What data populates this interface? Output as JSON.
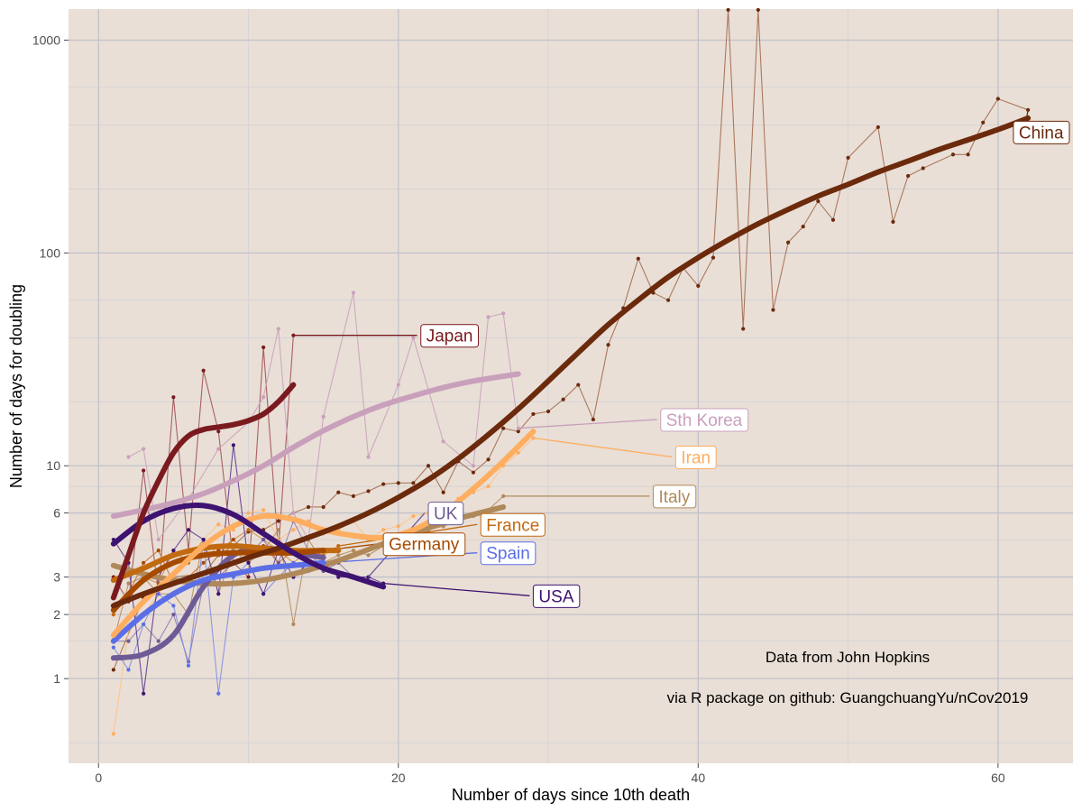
{
  "chart_data": {
    "type": "line",
    "xlabel": "Number of days since 10th death",
    "ylabel": "Number of days for doubling",
    "xlim": [
      -2,
      65
    ],
    "ylim": [
      0.4,
      1400
    ],
    "y_scale": "log",
    "x_ticks": [
      0,
      20,
      40,
      60
    ],
    "y_ticks": [
      1,
      2,
      3,
      6,
      10,
      100,
      1000
    ],
    "y_tick_labels": [
      "1",
      "2",
      "3",
      "6",
      "10",
      "100",
      "1000"
    ],
    "grid": true,
    "annotations": [
      "Data from John Hopkins",
      "via R package on github: GuangchuangYu/nCov2019"
    ],
    "series": [
      {
        "name": "China",
        "color": "#6b2a0c",
        "raw_color": "#a0664a",
        "raw_x": [
          1,
          3,
          5,
          7,
          8,
          9,
          10,
          11,
          12,
          13,
          14,
          15,
          16,
          17,
          18,
          19,
          20,
          21,
          22,
          23,
          24,
          25,
          26,
          27,
          28,
          29,
          30,
          31,
          32,
          33,
          34,
          35,
          36,
          37,
          38,
          39,
          40,
          41,
          42,
          43,
          44,
          45,
          46,
          47,
          48,
          49,
          50,
          52,
          53,
          54,
          55,
          57,
          58,
          59,
          60,
          62
        ],
        "raw_y": [
          1.1,
          2.4,
          3.0,
          3.1,
          3.8,
          4.2,
          4.9,
          5.0,
          5.5,
          6.0,
          6.4,
          6.4,
          7.5,
          7.2,
          7.6,
          8.2,
          8.3,
          8.3,
          10.0,
          7.5,
          10.5,
          9.3,
          10.7,
          15.0,
          14.5,
          17.5,
          18.0,
          20.5,
          24.0,
          16.5,
          37.0,
          55.0,
          94.0,
          65.0,
          60.0,
          85.0,
          70.0,
          95.0,
          1400,
          44.0,
          1400,
          54.0,
          112.0,
          133.0,
          175.0,
          143.0,
          280.0,
          390.0,
          140.0,
          230.0,
          250.0,
          290.0,
          290.0,
          410.0,
          530.0,
          470.0
        ],
        "smooth_x": [
          1,
          3,
          5,
          8,
          10,
          12,
          14,
          16,
          18,
          20,
          22,
          24,
          26,
          28,
          30,
          32,
          34,
          36,
          38,
          40,
          42,
          44,
          46,
          48,
          50,
          52,
          54,
          56,
          58,
          60,
          62
        ],
        "smooth_y": [
          2.2,
          2.5,
          2.8,
          3.3,
          3.7,
          4.1,
          4.6,
          5.2,
          6.0,
          7.1,
          8.6,
          10.8,
          14.0,
          18.5,
          25.0,
          34.0,
          46.0,
          60.0,
          77.0,
          95.0,
          115.0,
          137.0,
          160.0,
          185.0,
          210.0,
          240.0,
          270.0,
          305.0,
          340.0,
          380.0,
          430.0
        ],
        "label_x": 62,
        "label_y": 370
      },
      {
        "name": "Japan",
        "color": "#7a1a1f",
        "raw_color": "#9e4a4f",
        "raw_x": [
          1,
          2,
          3,
          4,
          5,
          6,
          7,
          8,
          9,
          10,
          11,
          12,
          13
        ],
        "raw_y": [
          3.0,
          2.3,
          9.5,
          2.5,
          21.0,
          4.0,
          28.0,
          14.5,
          3.5,
          3.0,
          36.0,
          4.0,
          41.0
        ],
        "smooth_x": [
          1,
          2,
          3,
          4,
          5,
          6,
          7,
          8,
          9,
          10,
          11,
          12,
          13
        ],
        "smooth_y": [
          2.4,
          3.8,
          6.0,
          8.5,
          11.5,
          13.8,
          14.8,
          15.2,
          15.6,
          16.3,
          17.5,
          20.0,
          24.0
        ],
        "label_x": 21.5,
        "label_y": 41.0
      },
      {
        "name": "Sth Korea",
        "color": "#c9a0bc",
        "raw_color": "#c9a0bc",
        "raw_x": [
          2,
          3,
          4,
          6,
          8,
          10,
          11,
          12,
          13,
          14,
          15,
          17,
          18,
          20,
          21,
          23,
          25,
          26,
          27,
          28
        ],
        "raw_y": [
          11.0,
          12.0,
          4.5,
          7.0,
          12.0,
          16.0,
          21.0,
          44.0,
          6.0,
          4.5,
          17.0,
          65.0,
          11.0,
          24.0,
          40.0,
          13.0,
          10.0,
          50.0,
          52.0,
          15.0
        ],
        "smooth_x": [
          1,
          3,
          5,
          7,
          9,
          11,
          13,
          15,
          17,
          19,
          21,
          23,
          25,
          28
        ],
        "smooth_y": [
          5.8,
          6.2,
          6.7,
          7.4,
          8.5,
          10.0,
          12.2,
          14.6,
          17.0,
          19.3,
          21.3,
          23.3,
          25.0,
          27.0
        ],
        "label_x": 37.5,
        "label_y": 16.5
      },
      {
        "name": "Iran",
        "color": "#ffad5f",
        "raw_color": "#ffc284",
        "raw_x": [
          1,
          2,
          3,
          4,
          5,
          6,
          7,
          8,
          9,
          10,
          11,
          12,
          13,
          14,
          15,
          16,
          17,
          18,
          19,
          20,
          21,
          22,
          23,
          24,
          25,
          26,
          27,
          28,
          29
        ],
        "raw_y": [
          0.55,
          1.7,
          2.0,
          2.5,
          3.0,
          3.8,
          4.5,
          5.3,
          5.0,
          6.0,
          6.2,
          4.5,
          5.0,
          5.5,
          4.8,
          5.0,
          5.5,
          4.5,
          5.0,
          5.2,
          5.8,
          6.0,
          6.2,
          7.0,
          7.5,
          8.0,
          10.0,
          11.5,
          13.5
        ],
        "smooth_x": [
          1,
          3,
          5,
          7,
          9,
          11,
          13,
          15,
          17,
          19,
          21,
          23,
          25,
          27,
          29
        ],
        "smooth_y": [
          1.6,
          2.3,
          3.1,
          4.2,
          5.2,
          5.8,
          5.6,
          5.0,
          4.7,
          4.6,
          5.0,
          6.0,
          7.8,
          10.5,
          14.5
        ],
        "label_x": 38.5,
        "label_y": 11.0
      },
      {
        "name": "Italy",
        "color": "#b0895a",
        "raw_color": "#b0895a",
        "raw_x": [
          1,
          2,
          3,
          4,
          5,
          6,
          7,
          8,
          9,
          10,
          11,
          12,
          13,
          14,
          15,
          16,
          17,
          18,
          19,
          20,
          21,
          22,
          23,
          24,
          25,
          26,
          27
        ],
        "raw_y": [
          1.5,
          2.8,
          3.0,
          2.5,
          2.5,
          2.0,
          4.5,
          2.5,
          4.0,
          3.5,
          4.0,
          5.0,
          1.8,
          4.5,
          3.5,
          3.8,
          4.0,
          3.8,
          4.2,
          4.5,
          4.8,
          5.0,
          5.2,
          5.5,
          5.8,
          6.2,
          7.2
        ],
        "smooth_x": [
          1,
          3,
          5,
          7,
          9,
          11,
          13,
          15,
          17,
          19,
          21,
          23,
          25,
          27
        ],
        "smooth_y": [
          3.4,
          3.1,
          2.9,
          2.8,
          2.8,
          2.9,
          3.1,
          3.4,
          3.8,
          4.3,
          4.8,
          5.4,
          5.9,
          6.4
        ],
        "label_x": 37.0,
        "label_y": 7.2
      },
      {
        "name": "France",
        "color": "#c26a10",
        "raw_color": "#d48a40",
        "raw_x": [
          1,
          2,
          3,
          4,
          5,
          6,
          7,
          8,
          9,
          10,
          11,
          12,
          13,
          14,
          15,
          16
        ],
        "raw_y": [
          2.0,
          2.5,
          3.0,
          2.8,
          4.0,
          3.5,
          4.5,
          3.8,
          4.5,
          5.0,
          4.5,
          4.0,
          3.5,
          4.0,
          3.8,
          4.2
        ],
        "smooth_x": [
          1,
          3,
          5,
          7,
          9,
          11,
          13,
          15,
          16
        ],
        "smooth_y": [
          2.9,
          3.3,
          3.8,
          4.1,
          4.2,
          4.1,
          4.0,
          4.0,
          4.0
        ],
        "label_x": 25.5,
        "label_y": 5.3
      },
      {
        "name": "Germany",
        "color": "#a64a00",
        "raw_color": "#c46a2a",
        "raw_x": [
          1,
          2,
          3,
          4,
          5,
          6,
          7,
          8,
          9,
          10,
          11,
          12,
          13,
          14,
          15
        ],
        "raw_y": [
          2.2,
          2.5,
          3.5,
          4.0,
          2.8,
          3.0,
          3.5,
          4.0,
          4.5,
          3.8,
          4.2,
          3.5,
          4.0,
          3.8,
          4.0
        ],
        "smooth_x": [
          1,
          3,
          5,
          7,
          9,
          11,
          13,
          15
        ],
        "smooth_y": [
          2.1,
          2.9,
          3.5,
          3.8,
          3.9,
          3.9,
          3.9,
          4.0
        ],
        "label_x": 19.0,
        "label_y": 4.3
      },
      {
        "name": "UK",
        "color": "#6e5a96",
        "raw_color": "#8a78b0",
        "raw_x": [
          1,
          2,
          3,
          4,
          5,
          6,
          7,
          8,
          9,
          10,
          11,
          12,
          13,
          14,
          15,
          16,
          17,
          18
        ],
        "raw_y": [
          1.5,
          1.5,
          1.8,
          1.5,
          2.0,
          1.2,
          2.8,
          3.0,
          3.5,
          3.8,
          4.5,
          3.5,
          5.5,
          4.0,
          3.2,
          3.5,
          3.0,
          3.0
        ],
        "smooth_x": [
          1,
          3,
          5,
          7,
          9,
          11,
          13,
          15
        ],
        "smooth_y": [
          1.25,
          1.3,
          1.6,
          2.7,
          3.8,
          4.1,
          3.9,
          3.7
        ],
        "label_x": 22.0,
        "label_y": 6.0
      },
      {
        "name": "Spain",
        "color": "#5b6ee6",
        "raw_color": "#7b8ae6",
        "raw_x": [
          1,
          2,
          3,
          4,
          5,
          6,
          7,
          8,
          9,
          10,
          11,
          12,
          13,
          14,
          15
        ],
        "raw_y": [
          1.4,
          1.1,
          1.8,
          2.5,
          2.2,
          1.15,
          4.5,
          0.85,
          3.0,
          3.5,
          2.5,
          3.0,
          3.5,
          3.2,
          3.5
        ],
        "smooth_x": [
          1,
          3,
          5,
          7,
          9,
          11,
          13,
          15
        ],
        "smooth_y": [
          1.5,
          2.0,
          2.5,
          2.9,
          3.1,
          3.3,
          3.4,
          3.5
        ],
        "label_x": 25.5,
        "label_y": 3.9
      },
      {
        "name": "USA",
        "color": "#3d1270",
        "raw_color": "#5a3090",
        "raw_x": [
          1,
          2,
          3,
          4,
          5,
          6,
          7,
          8,
          9,
          10,
          11,
          12,
          13,
          14,
          15,
          16,
          17,
          18,
          19
        ],
        "raw_y": [
          4.5,
          3.5,
          0.85,
          3.0,
          4.0,
          5.0,
          4.5,
          2.5,
          12.5,
          3.5,
          2.5,
          4.0,
          3.0,
          3.5,
          3.5,
          3.0,
          3.0,
          3.0,
          2.8
        ],
        "smooth_x": [
          1,
          3,
          5,
          7,
          9,
          11,
          13,
          15,
          17,
          19
        ],
        "smooth_y": [
          4.3,
          5.5,
          6.3,
          6.5,
          5.9,
          4.8,
          3.9,
          3.3,
          3.0,
          2.7
        ],
        "label_x": 29.0,
        "label_y": 2.45
      }
    ]
  }
}
